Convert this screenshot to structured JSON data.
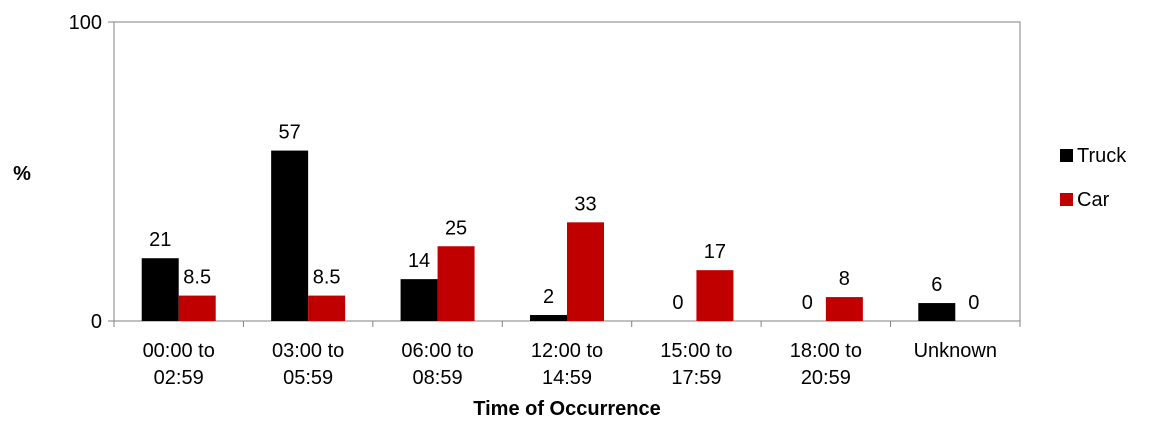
{
  "chart_data": {
    "type": "bar",
    "title": "",
    "xlabel": "Time of Occurrence",
    "ylabel": "%",
    "ylim": [
      0,
      100
    ],
    "yticks": [
      "0",
      "100"
    ],
    "categories": [
      [
        "00:00 to",
        "02:59"
      ],
      [
        "03:00 to",
        "05:59"
      ],
      [
        "06:00 to",
        "08:59"
      ],
      [
        "12:00 to",
        "14:59"
      ],
      [
        "15:00 to",
        "17:59"
      ],
      [
        "18:00 to",
        "20:59"
      ],
      [
        "Unknown"
      ]
    ],
    "series": [
      {
        "name": "Truck",
        "color": "#000000",
        "values": [
          21,
          57,
          14,
          2,
          0,
          0,
          6
        ],
        "labels": [
          "21",
          "57",
          "14",
          "2",
          "0",
          "0",
          "6"
        ]
      },
      {
        "name": "Car",
        "color": "#c00000",
        "values": [
          8.5,
          8.5,
          25,
          33,
          17,
          8,
          0
        ],
        "labels": [
          "8.5",
          "8.5",
          "25",
          "33",
          "17",
          "8",
          "0"
        ]
      }
    ],
    "grid": false,
    "legend_position": "right"
  }
}
